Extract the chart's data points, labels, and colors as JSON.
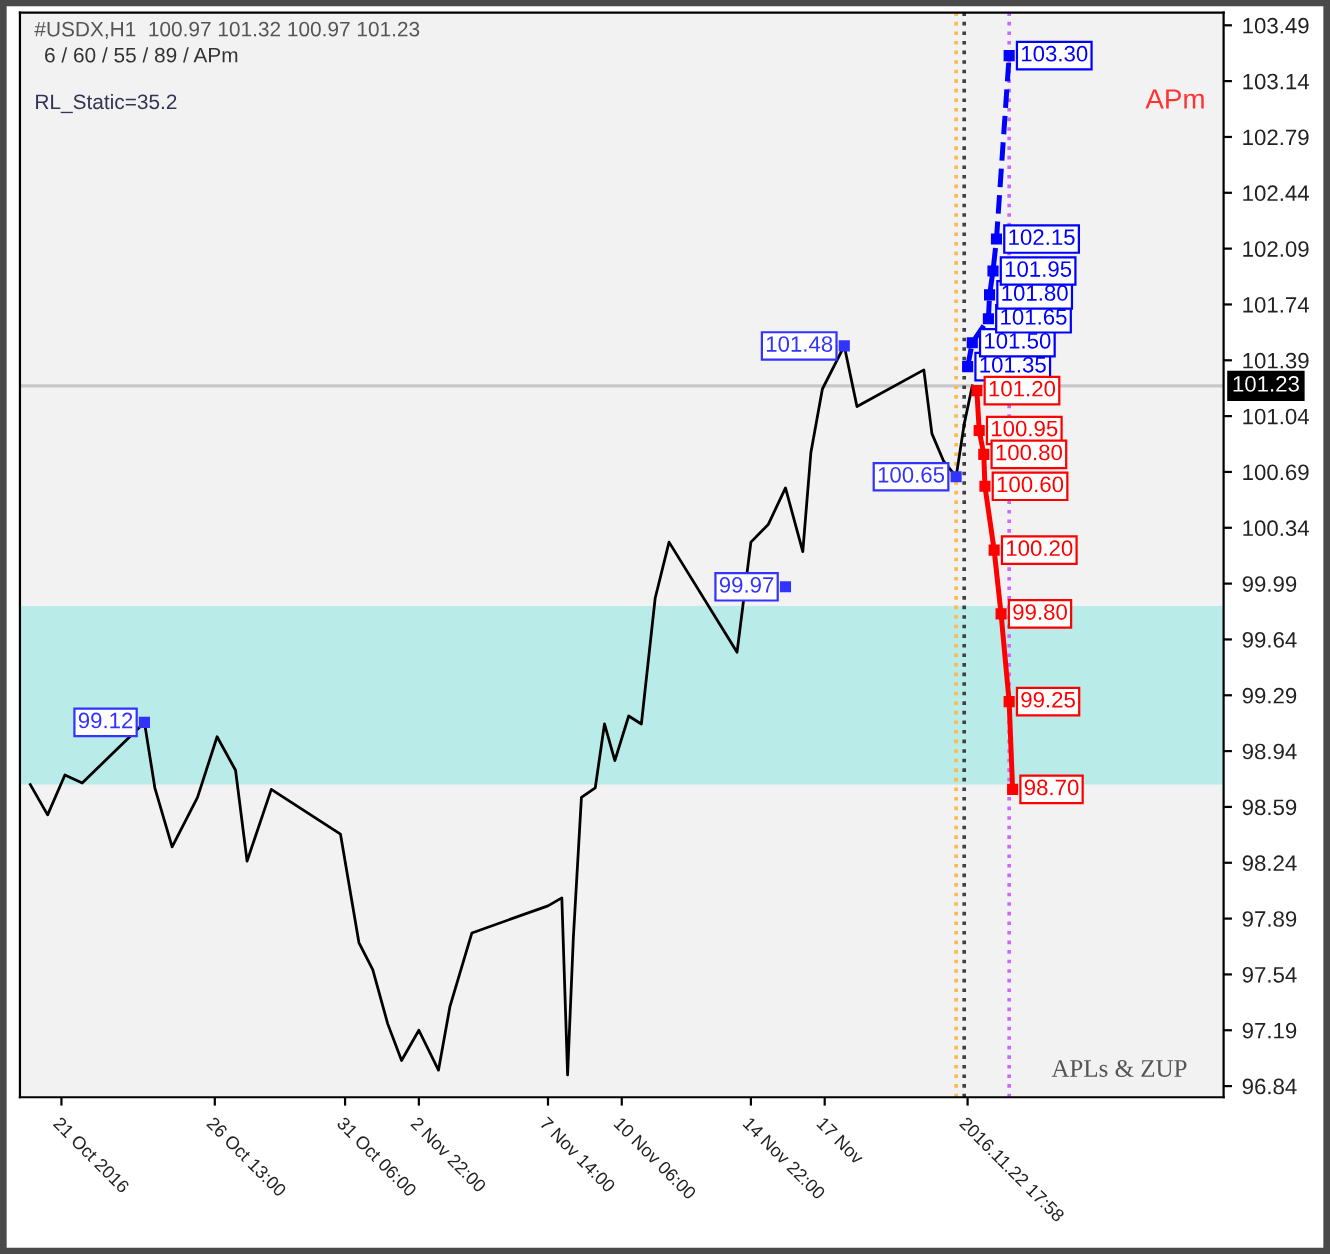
{
  "chart_data": {
    "type": "line",
    "title": "#USDX,H1  100.97 101.32 100.97 101.23",
    "subtitle": "6 / 60 / 55 / 89 / APm",
    "annotations": [
      "RL_Static=35.2",
      "APm",
      "APLs & ZUP",
      {
        "text": "101.48",
        "x": "2016-11-18T07:00",
        "y": 101.48
      },
      {
        "text": "100.65",
        "x": "2016-11-22T08:00",
        "y": 100.66
      },
      {
        "text": "99.97",
        "x": "2016-11-16T04:00",
        "y": 99.97
      },
      {
        "text": "99.12",
        "x": "2016-10-24T00:00",
        "y": 99.12
      }
    ],
    "xlim": [
      "2016-10-19T12:00",
      "2016-12-02T00:00"
    ],
    "ylim": [
      96.77,
      103.57
    ],
    "xticks": [
      {
        "value": "2016-10-21T00:00",
        "label": "21 Oct 2016"
      },
      {
        "value": "2016-10-26T13:00",
        "label": "26 Oct 13:00"
      },
      {
        "value": "2016-10-31T06:00",
        "label": "31 Oct 06:00"
      },
      {
        "value": "2016-11-02T22:00",
        "label": "2 Nov 22:00"
      },
      {
        "value": "2016-11-07T14:00",
        "label": "7 Nov 14:00"
      },
      {
        "value": "2016-11-10T06:00",
        "label": "10 Nov 06:00"
      },
      {
        "value": "2016-11-14T22:00",
        "label": "14 Nov 22:00"
      },
      {
        "value": "2016-11-17T14:00",
        "label": "17 Nov"
      },
      {
        "value": "2016-11-22T17:58",
        "label": "2016.11.22 17:58"
      }
    ],
    "yticks": [
      96.84,
      97.19,
      97.54,
      97.89,
      98.24,
      98.59,
      98.94,
      99.29,
      99.64,
      99.99,
      100.34,
      100.69,
      101.04,
      101.39,
      101.74,
      102.09,
      102.44,
      102.79,
      103.14,
      103.49
    ],
    "series": [
      {
        "color": "#000000",
        "x": [
          "2016-10-19T21:00",
          "2016-10-20T12:00",
          "2016-10-21T03:00",
          "2016-10-21T18:00",
          "2016-10-24T00:00",
          "2016-10-24T09:00",
          "2016-10-25T00:00",
          "2016-10-25T22:00",
          "2016-10-26T15:00",
          "2016-10-27T07:00",
          "2016-10-27T17:00",
          "2016-10-28T14:00",
          "2016-10-31T02:00",
          "2016-10-31T18:00",
          "2016-11-01T06:00",
          "2016-11-01T19:00",
          "2016-11-02T07:00",
          "2016-11-02T22:00",
          "2016-11-03T15:00",
          "2016-11-04T01:00",
          "2016-11-04T20:00",
          "2016-11-07T14:00",
          "2016-11-08T02:00",
          "2016-11-08T07:00",
          "2016-11-08T12:00",
          "2016-11-08T19:00",
          "2016-11-09T07:00",
          "2016-11-09T15:00",
          "2016-11-10T00:00",
          "2016-11-10T12:00",
          "2016-11-10T23:00",
          "2016-11-11T11:00",
          "2016-11-11T23:00",
          "2016-11-14T10:00",
          "2016-11-14T22:00",
          "2016-11-15T13:00",
          "2016-11-16T04:00",
          "2016-11-16T19:00",
          "2016-11-17T02:00",
          "2016-11-17T12:00",
          "2016-11-18T07:00",
          "2016-11-18T18:00",
          "2016-11-21T04:00",
          "2016-11-21T11:00",
          "2016-11-21T21:00",
          "2016-11-22T08:00",
          "2016-11-22T15:00",
          "2016-11-22T22:00"
        ],
        "values": [
          98.73,
          98.54,
          98.79,
          98.74,
          99.12,
          98.71,
          98.34,
          98.65,
          99.03,
          98.82,
          98.25,
          98.7,
          98.42,
          97.74,
          97.57,
          97.23,
          97.0,
          97.19,
          96.94,
          97.34,
          97.8,
          97.97,
          98.02,
          96.91,
          97.77,
          98.65,
          98.71,
          99.11,
          98.88,
          99.16,
          99.11,
          99.9,
          100.25,
          99.56,
          100.25,
          100.36,
          100.59,
          100.19,
          100.81,
          101.21,
          101.48,
          101.1,
          101.33,
          100.93,
          100.76,
          100.66,
          100.99,
          101.23
        ]
      },
      {
        "color": "#0000ff",
        "line_style": "dashed",
        "marker": "square",
        "x": [
          "2016-11-22T18:00",
          "2016-11-22T22:00",
          "2016-11-23T12:00",
          "2016-11-23T13:00",
          "2016-11-23T16:00",
          "2016-11-23T19:00",
          "2016-11-24T06:00"
        ],
        "values": [
          101.35,
          101.5,
          101.65,
          101.8,
          101.95,
          102.15,
          103.3
        ],
        "value_labels": [
          "101.35",
          "101.50",
          "101.65",
          "101.80",
          "101.95",
          "102.15",
          "103.30"
        ]
      },
      {
        "color": "#ff0000",
        "line_style": "solid",
        "marker": "square",
        "x": [
          "2016-11-23T02:00",
          "2016-11-23T04:00",
          "2016-11-23T08:00",
          "2016-11-23T09:00",
          "2016-11-23T17:00",
          "2016-11-23T23:00",
          "2016-11-24T06:00",
          "2016-11-24T09:00"
        ],
        "values": [
          101.2,
          100.95,
          100.8,
          100.6,
          100.2,
          99.8,
          99.25,
          98.7
        ],
        "value_labels": [
          "101.20",
          "100.95",
          "100.80",
          "100.60",
          "100.20",
          "99.80",
          "99.25",
          "98.70"
        ]
      }
    ],
    "bands": [
      {
        "axis": "y",
        "from": 98.73,
        "to": 99.85,
        "color": "#b2ebe8"
      }
    ],
    "ref_lines": [
      {
        "axis": "y",
        "value": 101.23,
        "label": "101.23",
        "color": "#c8c8c8",
        "line_style": "solid"
      },
      {
        "axis": "x",
        "value": "2016-11-22T08:00",
        "color": "#ffb84d",
        "line_style": "dotted"
      },
      {
        "axis": "x",
        "value": "2016-11-22T15:00",
        "color": "#404040",
        "line_style": "dotted"
      },
      {
        "axis": "x",
        "value": "2016-11-24T06:00",
        "color": "#cc66ff",
        "line_style": "dotted"
      }
    ],
    "grid": false,
    "legend": false
  }
}
